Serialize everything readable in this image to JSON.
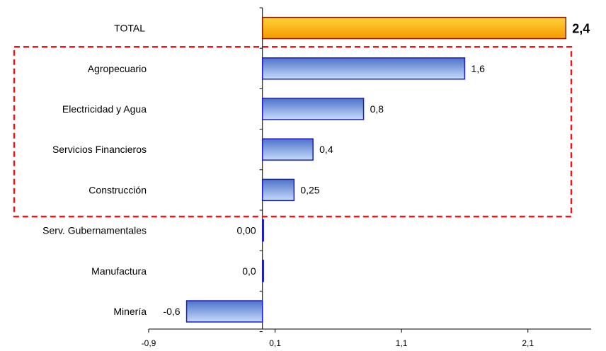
{
  "chart_data": {
    "type": "bar",
    "orientation": "horizontal",
    "categories": [
      "TOTAL",
      "Agropecuario",
      "Electricidad y Agua",
      "Servicios Financieros",
      "Construcción",
      "Serv. Gubernamentales",
      "Manufactura",
      "Minería"
    ],
    "values": [
      2.4,
      1.6,
      0.8,
      0.4,
      0.25,
      0.0,
      0.0,
      -0.6
    ],
    "data_labels": [
      "2,4",
      "1,6",
      "0,8",
      "0,4",
      "0,25",
      "0,00",
      "0,0",
      "-0,6"
    ],
    "xlim": [
      -0.9,
      2.6
    ],
    "x_ticks": [
      -0.9,
      0.1,
      1.1,
      2.1
    ],
    "x_tick_labels": [
      "-0,9",
      "0,1",
      "1,1",
      "2,1"
    ],
    "highlight_category": "TOTAL",
    "highlight_group": [
      "Agropecuario",
      "Electricidad y Agua",
      "Servicios Financieros",
      "Construcción"
    ],
    "colors": {
      "total_fill_top": "#ffd23a",
      "total_fill_bottom": "#f39a00",
      "total_stroke": "#8b1a00",
      "bar_fill_top": "#4e72c8",
      "bar_fill_bottom": "#c6dcfb",
      "bar_stroke": "#1c1ccf",
      "dash_box": "#e8191a"
    },
    "grid": false,
    "legend": "none"
  }
}
